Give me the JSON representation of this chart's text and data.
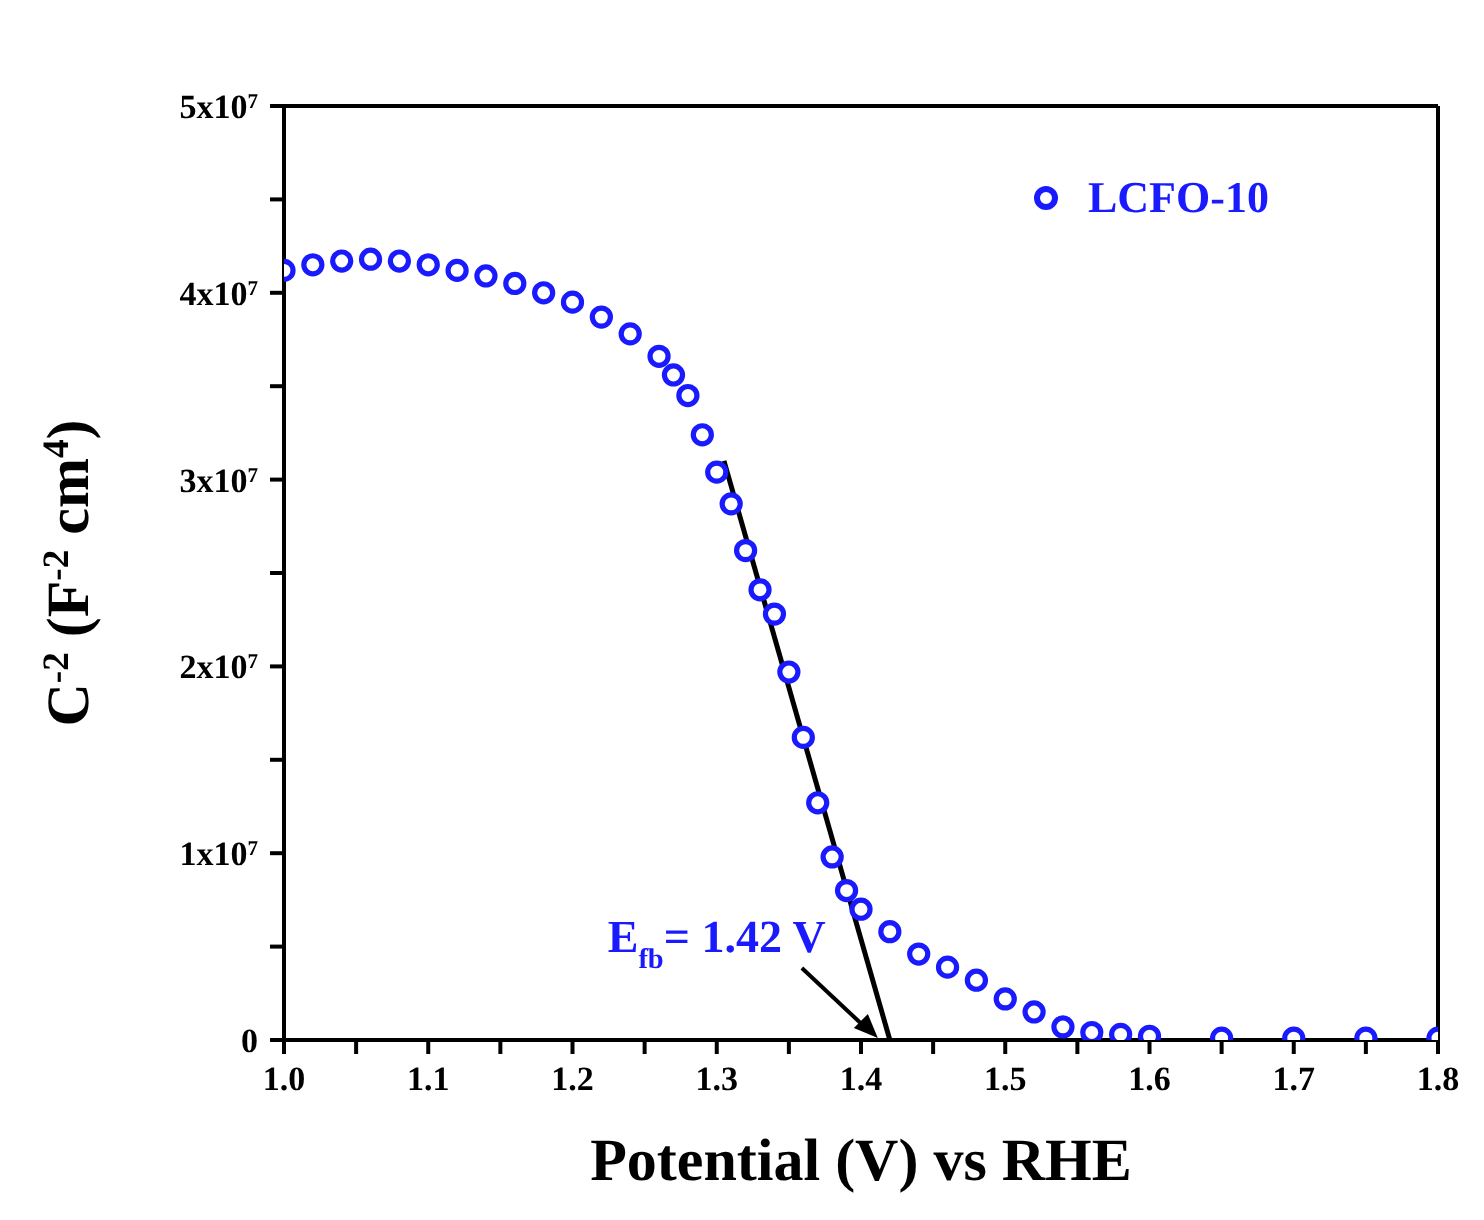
{
  "chart_data": {
    "type": "scatter",
    "xlabel": "Potential (V) vs RHE",
    "ylabel": "C$^{-2}$ (F$^{-2}$ cm$^{4}$)",
    "series": [
      {
        "name": "LCFO-10",
        "marker": "circle",
        "color": "#1a1aff",
        "x": [
          1.0,
          1.02,
          1.04,
          1.06,
          1.08,
          1.1,
          1.12,
          1.14,
          1.16,
          1.18,
          1.2,
          1.22,
          1.24,
          1.26,
          1.27,
          1.28,
          1.29,
          1.3,
          1.31,
          1.32,
          1.33,
          1.34,
          1.35,
          1.36,
          1.37,
          1.38,
          1.39,
          1.4,
          1.42,
          1.44,
          1.46,
          1.48,
          1.5,
          1.52,
          1.54,
          1.56,
          1.58,
          1.6,
          1.65,
          1.7,
          1.75,
          1.8
        ],
        "values": [
          41200000,
          41500000,
          41700000,
          41800000,
          41700000,
          41500000,
          41200000,
          40900000,
          40500000,
          40000000,
          39500000,
          38700000,
          37800000,
          36600000,
          35600000,
          34500000,
          32400000,
          30400000,
          28700000,
          26200000,
          24100000,
          22800000,
          19700000,
          16200000,
          12700000,
          9800000,
          8000000,
          7000000,
          5800000,
          4600000,
          3900000,
          3200000,
          2200000,
          1500000,
          700000,
          400000,
          300000,
          200000,
          100000,
          100000,
          100000,
          100000
        ]
      },
      {
        "type": "line",
        "marker": "none",
        "color": "#000000",
        "x": [
          1.305,
          1.42
        ],
        "values": [
          31000000,
          0
        ]
      }
    ],
    "xlim": [
      1.0,
      1.8
    ],
    "xticks": [
      {
        "value": 1.0,
        "label": "1.0"
      },
      {
        "value": 1.05,
        "label": null
      },
      1.1,
      {
        "value": 1.15,
        "label": null
      },
      1.2,
      {
        "value": 1.25,
        "label": null
      },
      1.3,
      {
        "value": 1.35,
        "label": null
      },
      1.4,
      {
        "value": 1.45,
        "label": null
      },
      1.5,
      {
        "value": 1.55,
        "label": null
      },
      1.6,
      {
        "value": 1.65,
        "label": null
      },
      1.7,
      {
        "value": 1.75,
        "label": null
      },
      {
        "value": 1.8,
        "label": "1.8"
      }
    ],
    "ylim": [
      0,
      50000000
    ],
    "yticks": [
      0,
      {
        "value": 5000000,
        "label": null
      },
      {
        "value": 10000000,
        "label": "1x10$^{7}$"
      },
      {
        "value": 15000000,
        "label": null
      },
      {
        "value": 20000000,
        "label": "2x10$^{7}$"
      },
      {
        "value": 25000000,
        "label": null
      },
      {
        "value": 30000000,
        "label": "3x10$^{7}$"
      },
      {
        "value": 35000000,
        "label": null
      },
      {
        "value": 40000000,
        "label": "4x10$^{7}$"
      },
      {
        "value": 45000000,
        "label": null
      },
      {
        "value": 50000000,
        "label": "5x10$^{7}$"
      }
    ],
    "annotations": [
      {
        "text": "E$_{fb}$= 1.42 V",
        "x": 1.42,
        "y": 0
      }
    ],
    "line_style": "solid",
    "legend": "top right"
  }
}
